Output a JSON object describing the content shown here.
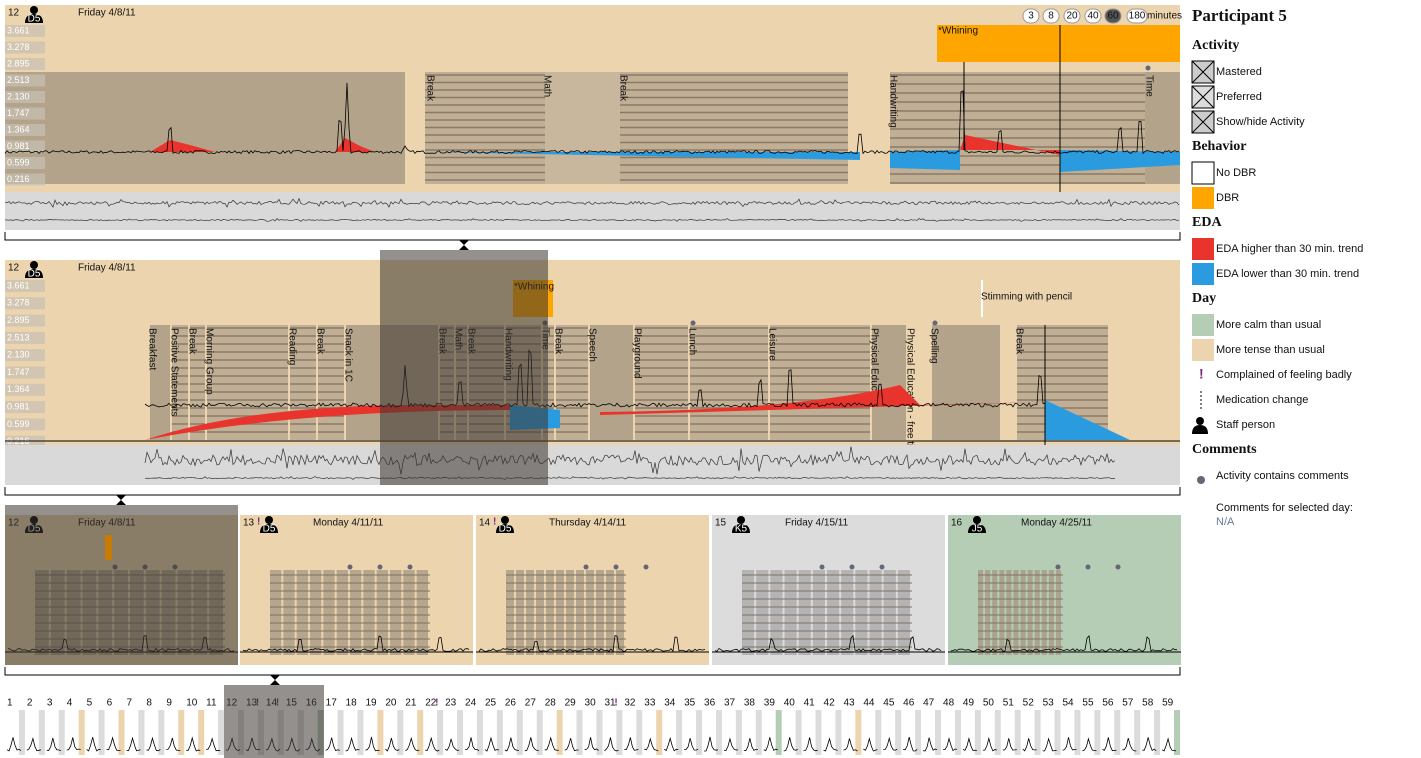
{
  "top_panel": {
    "day": "12",
    "staff": "D5",
    "date": "Friday   4/8/11",
    "yaxis": [
      "3.661",
      "3.278",
      "2.895",
      "2.513",
      "2.130",
      "1.747",
      "1.364",
      "0.981",
      "0.599",
      "0.216"
    ],
    "zoom": [
      "3",
      "8",
      "20",
      "40",
      "60",
      "180"
    ],
    "zoom_unit": "minutes",
    "activities": [
      "Break",
      "Math",
      "Break",
      "Handwriting",
      "Time"
    ],
    "behavior": "*Whining"
  },
  "detail_panel": {
    "day": "12",
    "staff": "D5",
    "date": "Friday   4/8/11",
    "yaxis": [
      "3.661",
      "3.278",
      "2.895",
      "2.513",
      "2.130",
      "1.747",
      "1.364",
      "0.981",
      "0.599",
      "0.216"
    ],
    "activities": [
      "Breakfast",
      "Positive Statements",
      "Break",
      "Morning Group",
      "Reading",
      "Break",
      "Snack in 1C",
      "Break",
      "Math",
      "Break",
      "Handwriting",
      "Time",
      "Break",
      "Speech",
      "Playground",
      "Lunch",
      "Leisure",
      "Physical Educa",
      "Physical Education - free time",
      "Spelling",
      "Break"
    ],
    "behavior": "*Whining",
    "note": "Stimming with pencil"
  },
  "days": [
    {
      "day": "12",
      "staff": "D5",
      "date": "Friday   4/8/11"
    },
    {
      "day": "13",
      "flag": "!",
      "staff": "D5",
      "date": "Monday   4/11/11"
    },
    {
      "day": "14",
      "flag": "!",
      "staff": "D5",
      "date": "Thursday   4/14/11"
    },
    {
      "day": "15",
      "staff": "K5",
      "date": "Friday   4/15/11"
    },
    {
      "day": "16",
      "staff": "J5",
      "date": "Monday   4/25/11"
    }
  ],
  "timeline": [
    {
      "n": "1"
    },
    {
      "n": "2"
    },
    {
      "n": "3"
    },
    {
      "n": "4"
    },
    {
      "n": "5"
    },
    {
      "n": "6"
    },
    {
      "n": "7"
    },
    {
      "n": "8"
    },
    {
      "n": "9"
    },
    {
      "n": "10"
    },
    {
      "n": "11"
    },
    {
      "n": "12"
    },
    {
      "n": "13",
      "flag": "!"
    },
    {
      "n": "14",
      "flag": "!"
    },
    {
      "n": "15"
    },
    {
      "n": "16"
    },
    {
      "n": "17"
    },
    {
      "n": "18"
    },
    {
      "n": "19"
    },
    {
      "n": "20"
    },
    {
      "n": "21"
    },
    {
      "n": "22",
      "flag": "!"
    },
    {
      "n": "23"
    },
    {
      "n": "24"
    },
    {
      "n": "25"
    },
    {
      "n": "26"
    },
    {
      "n": "27"
    },
    {
      "n": "28"
    },
    {
      "n": "29"
    },
    {
      "n": "30"
    },
    {
      "n": "31",
      "flag": "!"
    },
    {
      "n": "32"
    },
    {
      "n": "33"
    },
    {
      "n": "34"
    },
    {
      "n": "35"
    },
    {
      "n": "36"
    },
    {
      "n": "37"
    },
    {
      "n": "38"
    },
    {
      "n": "39"
    },
    {
      "n": "40"
    },
    {
      "n": "41"
    },
    {
      "n": "42"
    },
    {
      "n": "43"
    },
    {
      "n": "44"
    },
    {
      "n": "45"
    },
    {
      "n": "46"
    },
    {
      "n": "47"
    },
    {
      "n": "48"
    },
    {
      "n": "49"
    },
    {
      "n": "50"
    },
    {
      "n": "51"
    },
    {
      "n": "52"
    },
    {
      "n": "53"
    },
    {
      "n": "54"
    },
    {
      "n": "55"
    },
    {
      "n": "56"
    },
    {
      "n": "57"
    },
    {
      "n": "58"
    },
    {
      "n": "59"
    }
  ],
  "legend": {
    "title": "Participant 5",
    "sections": [
      {
        "heading": "Activity",
        "items": [
          "Mastered",
          "Preferred",
          "Show/hide Activity"
        ]
      },
      {
        "heading": "Behavior",
        "items": [
          "No DBR",
          "DBR"
        ]
      },
      {
        "heading": "EDA",
        "items": [
          "EDA higher than 30 min. trend",
          "EDA lower than 30 min. trend"
        ]
      },
      {
        "heading": "Day",
        "items": [
          "More calm than usual",
          "More tense than usual",
          "Complained of feeling badly",
          "Medication change",
          "Staff person"
        ]
      },
      {
        "heading": "Comments",
        "items": [
          "Activity contains comments"
        ]
      }
    ],
    "comments_label": "Comments for selected day:",
    "comments_value": "N/A"
  }
}
